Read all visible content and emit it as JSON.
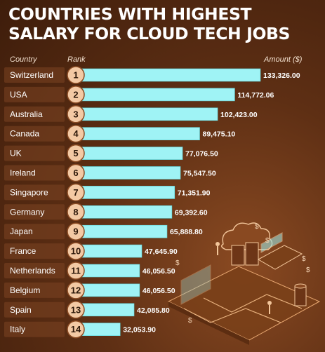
{
  "title": {
    "line1": "COUNTRIES WITH HIGHEST",
    "line2": "SALARY FOR CLOUD TECH JOBS"
  },
  "headers": {
    "country": "Country",
    "rank": "Rank",
    "amount": "Amount ($)"
  },
  "colors": {
    "background": "#5e2f14",
    "bar": "#9ff3f5",
    "badge": "#f3c9a4",
    "title": "#ffffff"
  },
  "chart_data": {
    "type": "bar",
    "orientation": "horizontal",
    "categories": [
      "Switzerland",
      "USA",
      "Australia",
      "Canada",
      "UK",
      "Ireland",
      "Singapore",
      "Germany",
      "Japan",
      "France",
      "Netherlands",
      "Belgium",
      "Spain",
      "Italy"
    ],
    "ranks": [
      "1",
      "2",
      "3",
      "4",
      "5",
      "6",
      "7",
      "8",
      "9",
      "10",
      "11",
      "12",
      "13",
      "14"
    ],
    "values": [
      133326.0,
      114772.06,
      102423.0,
      89475.1,
      77076.5,
      75547.5,
      71351.9,
      69392.6,
      65888.8,
      47645.9,
      46056.5,
      46056.5,
      42085.8,
      32053.9
    ],
    "value_labels": [
      "133,326.00",
      "114,772.06",
      "102,423.00",
      "89,475.10",
      "77,076.50",
      "75,547.50",
      "71,351.90",
      "69,392.60",
      "65,888.80",
      "47,645.90",
      "46,056.50",
      "46,056.50",
      "42,085.80",
      "32,053.90"
    ],
    "title": "COUNTRIES WITH HIGHEST SALARY FOR CLOUD TECH JOBS",
    "xlabel": "Amount ($)",
    "ylabel": "Country",
    "grid": false,
    "legend": "none"
  }
}
